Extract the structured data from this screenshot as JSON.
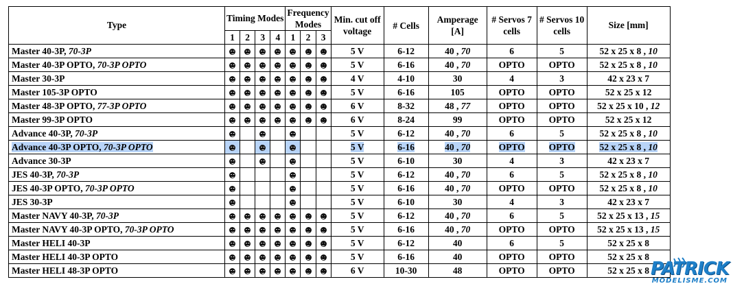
{
  "headers": {
    "type": "Type",
    "timing_modes": "Timing Modes",
    "frequency_modes": "Frequency Modes",
    "min_cutoff": "Min. cut off voltage",
    "cells": "# Cells",
    "amperage": "Amperage [A]",
    "servos7": "# Servos 7 cells",
    "servos10": "# Servos 10 cells",
    "size": "Size [mm]",
    "timing_numbers": [
      "1",
      "2",
      "3",
      "4"
    ],
    "frequency_numbers": [
      "1",
      "2",
      "3"
    ]
  },
  "rows": [
    {
      "name": "Master 40-3P,",
      "name_italic": "70-3P",
      "timing": [
        1,
        1,
        1,
        1
      ],
      "frequency": [
        1,
        1,
        1
      ],
      "voltage": "5 V",
      "cells": "6-12",
      "amp": "40 ,",
      "amp_italic": "70",
      "servos7": "6",
      "servos10": "5",
      "size": "52 x 25 x 8 ,",
      "size_italic": "10",
      "highlight": false
    },
    {
      "name": "Master  40-3P OPTO,",
      "name_italic": "70-3P OPTO",
      "timing": [
        1,
        1,
        1,
        1
      ],
      "frequency": [
        1,
        1,
        1
      ],
      "voltage": "5 V",
      "cells": "6-16",
      "amp": "40 ,",
      "amp_italic": "70",
      "servos7": "OPTO",
      "servos10": "OPTO",
      "size": "52 x 25 x 8 ,",
      "size_italic": "10",
      "highlight": false
    },
    {
      "name": "Master 30-3P",
      "name_italic": "",
      "timing": [
        1,
        1,
        1,
        1
      ],
      "frequency": [
        1,
        1,
        1
      ],
      "voltage": "4 V",
      "cells": "4-10",
      "amp": "30",
      "amp_italic": "",
      "servos7": "4",
      "servos10": "3",
      "size": "42 x 23 x 7",
      "size_italic": "",
      "highlight": false
    },
    {
      "name": "Master  105-3P OPTO",
      "name_italic": "",
      "timing": [
        1,
        1,
        1,
        1
      ],
      "frequency": [
        1,
        1,
        1
      ],
      "voltage": "5 V",
      "cells": "6-16",
      "amp": "105",
      "amp_italic": "",
      "servos7": "OPTO",
      "servos10": "OPTO",
      "size": "52 x 25 x 12",
      "size_italic": "",
      "highlight": false
    },
    {
      "name": "Master  48-3P OPTO,",
      "name_italic": "77-3P OPTO",
      "timing": [
        1,
        1,
        1,
        1
      ],
      "frequency": [
        1,
        1,
        1
      ],
      "voltage": "6 V",
      "cells": "8-32",
      "amp": "48 ,",
      "amp_italic": "77",
      "servos7": "OPTO",
      "servos10": "OPTO",
      "size": "52 x 25 x 10 ,",
      "size_italic": "12",
      "highlight": false
    },
    {
      "name": "Master  99-3P OPTO",
      "name_italic": "",
      "timing": [
        1,
        1,
        1,
        1
      ],
      "frequency": [
        1,
        1,
        1
      ],
      "voltage": "6 V",
      "cells": "8-24",
      "amp": "99",
      "amp_italic": "",
      "servos7": "OPTO",
      "servos10": "OPTO",
      "size": "52 x 25 x 12",
      "size_italic": "",
      "highlight": false
    },
    {
      "name": "Advance 40-3P,",
      "name_italic": "70-3P",
      "timing": [
        1,
        0,
        1,
        0
      ],
      "frequency": [
        1,
        0,
        0
      ],
      "voltage": "5 V",
      "cells": "6-12",
      "amp": "40 ,",
      "amp_italic": "70",
      "servos7": "6",
      "servos10": "5",
      "size": "52 x 25 x 8 ,",
      "size_italic": "10",
      "highlight": false
    },
    {
      "name": "Advance 40-3P OPTO,",
      "name_italic": "70-3P OPTO",
      "timing": [
        1,
        0,
        1,
        0
      ],
      "frequency": [
        1,
        0,
        0
      ],
      "voltage": "5 V",
      "cells": "6-16",
      "amp": "40 ,",
      "amp_italic": "70",
      "servos7": "OPTO",
      "servos10": "OPTO",
      "size": "52 x 25 x 8 ,",
      "size_italic": "10",
      "highlight": true
    },
    {
      "name": "Advance 30-3P",
      "name_italic": "",
      "timing": [
        1,
        0,
        1,
        0
      ],
      "frequency": [
        1,
        0,
        0
      ],
      "voltage": "5 V",
      "cells": "6-10",
      "amp": "30",
      "amp_italic": "",
      "servos7": "4",
      "servos10": "3",
      "size": "42 x 23 x 7",
      "size_italic": "",
      "highlight": false
    },
    {
      "name": "JES 40-3P,",
      "name_italic": "70-3P",
      "timing": [
        1,
        0,
        0,
        0
      ],
      "frequency": [
        1,
        0,
        0
      ],
      "voltage": "5 V",
      "cells": "6-12",
      "amp": "40 ,",
      "amp_italic": "70",
      "servos7": "6",
      "servos10": "5",
      "size": "52 x 25 x 8 ,",
      "size_italic": "10",
      "highlight": false
    },
    {
      "name": "JES 40-3P OPTO,",
      "name_italic": "70-3P OPTO",
      "timing": [
        1,
        0,
        0,
        0
      ],
      "frequency": [
        1,
        0,
        0
      ],
      "voltage": "5 V",
      "cells": "6-16",
      "amp": "40 ,",
      "amp_italic": "70",
      "servos7": "OPTO",
      "servos10": "OPTO",
      "size": "52 x 25 x 8 ,",
      "size_italic": "10",
      "highlight": false
    },
    {
      "name": "JES 30-3P",
      "name_italic": "",
      "timing": [
        1,
        0,
        0,
        0
      ],
      "frequency": [
        1,
        0,
        0
      ],
      "voltage": "5 V",
      "cells": "6-10",
      "amp": "30",
      "amp_italic": "",
      "servos7": "4",
      "servos10": "3",
      "size": "42 x 23 x 7",
      "size_italic": "",
      "highlight": false
    },
    {
      "name": "Master NAVY 40-3P,",
      "name_italic": "70-3P",
      "timing": [
        1,
        1,
        1,
        1
      ],
      "frequency": [
        1,
        1,
        1
      ],
      "voltage": "5 V",
      "cells": "6-12",
      "amp": "40 ,",
      "amp_italic": "70",
      "servos7": "6",
      "servos10": "5",
      "size": "52 x 25 x 13 ,",
      "size_italic": "15",
      "highlight": false
    },
    {
      "name": "Master  NAVY 40-3P OPTO,",
      "name_italic": "70-3P OPTO",
      "timing": [
        1,
        1,
        1,
        1
      ],
      "frequency": [
        1,
        1,
        1
      ],
      "voltage": "5 V",
      "cells": "6-16",
      "amp": "40 ,",
      "amp_italic": "70",
      "servos7": "OPTO",
      "servos10": "OPTO",
      "size": "52 x 25 x 13 ,",
      "size_italic": "15",
      "highlight": false
    },
    {
      "name": "Master HELI 40-3P",
      "name_italic": "",
      "timing": [
        1,
        1,
        1,
        1
      ],
      "frequency": [
        1,
        1,
        1
      ],
      "voltage": "5 V",
      "cells": "6-12",
      "amp": "40",
      "amp_italic": "",
      "servos7": "6",
      "servos10": "5",
      "size": "52 x 25 x 8",
      "size_italic": "",
      "highlight": false
    },
    {
      "name": "Master  HELI 40-3P OPTO",
      "name_italic": "",
      "timing": [
        1,
        1,
        1,
        1
      ],
      "frequency": [
        1,
        1,
        1
      ],
      "voltage": "5 V",
      "cells": "6-16",
      "amp": "40",
      "amp_italic": "",
      "servos7": "OPTO",
      "servos10": "OPTO",
      "size": "52 x 25 x 8",
      "size_italic": "",
      "highlight": false
    },
    {
      "name": "Master  HELI 48-3P OPTO",
      "name_italic": "",
      "timing": [
        1,
        1,
        1,
        1
      ],
      "frequency": [
        1,
        1,
        1
      ],
      "voltage": "6 V",
      "cells": "10-30",
      "amp": "48",
      "amp_italic": "",
      "servos7": "OPTO",
      "servos10": "OPTO",
      "size": "52 x 25 x 8",
      "size_italic": "",
      "highlight": false
    }
  ],
  "dot_icon": "smiley-dot-icon",
  "highlight_color": "#b8d4f8",
  "watermark": {
    "brand": "PATRICK",
    "site": "MODELISME.COM",
    "color": "#1e7fc8"
  }
}
